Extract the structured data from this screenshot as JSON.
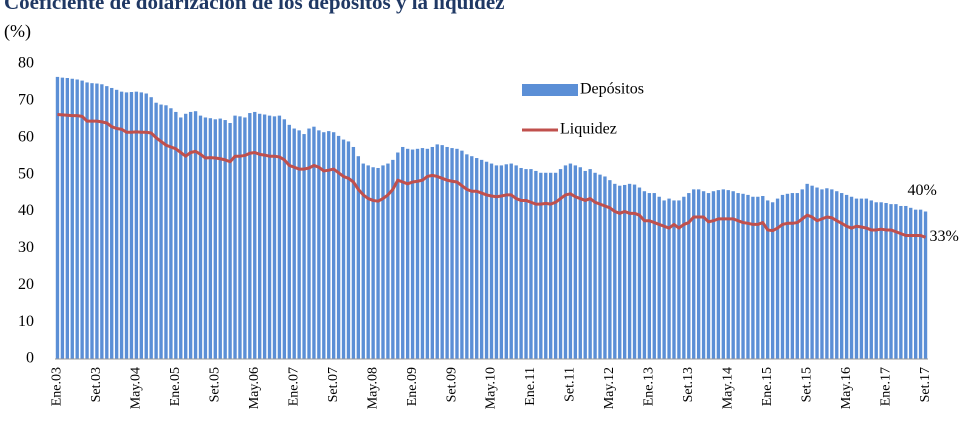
{
  "chart_data": {
    "type": "bar_line",
    "title": "Coeficiente de dolarización de los depósitos y la liquidez",
    "subtitle": "(%)",
    "categories": [
      "Ene.03",
      null,
      null,
      null,
      null,
      null,
      null,
      null,
      "Set.03",
      null,
      null,
      null,
      null,
      null,
      null,
      null,
      "May.04",
      null,
      null,
      null,
      null,
      null,
      null,
      null,
      "Ene.05",
      null,
      null,
      null,
      null,
      null,
      null,
      null,
      "Set.05",
      null,
      null,
      null,
      null,
      null,
      null,
      null,
      "May.06",
      null,
      null,
      null,
      null,
      null,
      null,
      null,
      "Ene.07",
      null,
      null,
      null,
      null,
      null,
      null,
      null,
      "Set.07",
      null,
      null,
      null,
      null,
      null,
      null,
      null,
      "May.08",
      null,
      null,
      null,
      null,
      null,
      null,
      null,
      "Ene.09",
      null,
      null,
      null,
      null,
      null,
      null,
      null,
      "Set.09",
      null,
      null,
      null,
      null,
      null,
      null,
      null,
      "May.10",
      null,
      null,
      null,
      null,
      null,
      null,
      null,
      "Ene.11",
      null,
      null,
      null,
      null,
      null,
      null,
      null,
      "Set.11",
      null,
      null,
      null,
      null,
      null,
      null,
      null,
      "May.12",
      null,
      null,
      null,
      null,
      null,
      null,
      null,
      "Ene.13",
      null,
      null,
      null,
      null,
      null,
      null,
      null,
      "Set.13",
      null,
      null,
      null,
      null,
      null,
      null,
      null,
      "May.14",
      null,
      null,
      null,
      null,
      null,
      null,
      null,
      "Ene.15",
      null,
      null,
      null,
      null,
      null,
      null,
      null,
      "Set.15",
      null,
      null,
      null,
      null,
      null,
      null,
      null,
      "May.16",
      null,
      null,
      null,
      null,
      null,
      null,
      null,
      "Ene.17",
      null,
      null,
      null,
      null,
      null,
      null,
      null,
      "Set.17"
    ],
    "series": [
      {
        "name": "Depósitos",
        "kind": "bar",
        "color": "#5b8fd6",
        "values": [
          76.5,
          76.3,
          76.2,
          76,
          75.8,
          75.5,
          75,
          74.8,
          74.7,
          74.5,
          74,
          73.5,
          73,
          72.5,
          72.3,
          72.4,
          72.5,
          72.3,
          72,
          71,
          69.5,
          69,
          68.8,
          68,
          67,
          65.5,
          66.5,
          67,
          67.2,
          66,
          65.5,
          65.3,
          65,
          65.2,
          64.8,
          64,
          66,
          65.8,
          65.5,
          66.7,
          67,
          66.5,
          66.3,
          66,
          65.8,
          66,
          65,
          63.5,
          62.5,
          62,
          61,
          62.5,
          63,
          62,
          61.5,
          61.8,
          61.5,
          60.5,
          59.5,
          59,
          57.5,
          55,
          53,
          52.5,
          52,
          51.8,
          52.5,
          53,
          54,
          56,
          57.5,
          57,
          56.8,
          57,
          57.2,
          57,
          57.5,
          58.2,
          58,
          57.5,
          57.2,
          57,
          56.5,
          55.5,
          55,
          54.5,
          54,
          53.5,
          53,
          52.5,
          52.5,
          52.8,
          53,
          52.5,
          51.8,
          51.5,
          51.5,
          51,
          50.5,
          50.5,
          50.5,
          50.5,
          51.5,
          52.5,
          53,
          52.5,
          52,
          51,
          51.5,
          50.5,
          50,
          49.5,
          48.5,
          47.5,
          47,
          47.2,
          47.5,
          47.3,
          46.5,
          45.5,
          45,
          45,
          44,
          43,
          43.5,
          43,
          43,
          44,
          45,
          46,
          46,
          45.5,
          45,
          45.5,
          45.8,
          46,
          45.8,
          45.5,
          45,
          44.8,
          44.5,
          44,
          44,
          44.2,
          43,
          42.5,
          43.5,
          44.5,
          44.8,
          45,
          45,
          46,
          47.5,
          47,
          46.5,
          46,
          46.3,
          46,
          45.5,
          45,
          44.5,
          44,
          43.5,
          43.5,
          43.5,
          43,
          42.5,
          42.5,
          42.3,
          42,
          42,
          41.5,
          41.5,
          41,
          40.5,
          40.5,
          40
        ]
      },
      {
        "name": "Liquidez",
        "kind": "line",
        "color": "#c0504d",
        "values": [
          66.3,
          66.2,
          66.1,
          66,
          66,
          65.8,
          64.5,
          64.5,
          64.5,
          64.3,
          64,
          63,
          62.5,
          62.3,
          61.5,
          61.5,
          61.6,
          61.5,
          61.5,
          61.3,
          60,
          59,
          58,
          57.5,
          57,
          56,
          55,
          56,
          56.3,
          55.5,
          54.5,
          54.6,
          54.5,
          54.3,
          54,
          53.5,
          55,
          55,
          55.2,
          55.8,
          56,
          55.5,
          55.3,
          55,
          55,
          54.8,
          54,
          52.5,
          52,
          51.5,
          51.5,
          51.8,
          52.5,
          52,
          51,
          51.2,
          51.5,
          50.5,
          49.5,
          49,
          48,
          46,
          44.5,
          43.5,
          43,
          42.8,
          43.5,
          44.5,
          46,
          48.5,
          48,
          47.5,
          48,
          48.2,
          48.5,
          49.5,
          49.8,
          49.5,
          49,
          48.5,
          48.2,
          48,
          47,
          46,
          45.5,
          45.5,
          45,
          44.5,
          44.2,
          44,
          44.2,
          44.5,
          44.5,
          43.5,
          43,
          43,
          42.5,
          42,
          42,
          42.2,
          42,
          42.5,
          43.5,
          44.5,
          44.8,
          44,
          43.5,
          43,
          43.5,
          42.5,
          42,
          41.5,
          41,
          40,
          39.5,
          40,
          39.5,
          39.5,
          39,
          37.5,
          37.5,
          37,
          36.5,
          36,
          35.5,
          36.5,
          35.5,
          36.5,
          37,
          38.5,
          38.5,
          38.5,
          37.2,
          37.5,
          38,
          38,
          38,
          38,
          37.5,
          37,
          36.8,
          36.5,
          36.5,
          37,
          35,
          34.8,
          35.5,
          36.5,
          36.8,
          36.8,
          37,
          38,
          39,
          38.5,
          37.5,
          38,
          38.5,
          38.3,
          37.5,
          36.8,
          36,
          35.5,
          36,
          35.8,
          35.5,
          35,
          35,
          35.2,
          35,
          35,
          34.5,
          34,
          33.5,
          33.5,
          33.5,
          33.5,
          33
        ]
      }
    ],
    "annotations": [
      "40%",
      "33%"
    ],
    "ylim": [
      0,
      80
    ],
    "yticks": [
      0,
      10,
      20,
      30,
      40,
      50,
      60,
      70,
      80
    ],
    "grid": false,
    "legend": "upper right"
  }
}
